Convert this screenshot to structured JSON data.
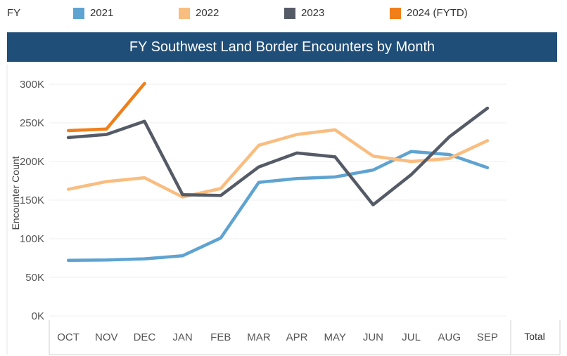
{
  "legend": {
    "title": "FY",
    "items": [
      {
        "label": "2021",
        "color": "#5ea3d1"
      },
      {
        "label": "2022",
        "color": "#f9bd80"
      },
      {
        "label": "2023",
        "color": "#555b66"
      },
      {
        "label": "2024 (FYTD)",
        "color": "#f07f1a"
      }
    ]
  },
  "chart_data": {
    "type": "line",
    "title": "FY Southwest Land Border Encounters by Month",
    "xlabel": "",
    "ylabel": "Encounter Count",
    "categories": [
      "OCT",
      "NOV",
      "DEC",
      "JAN",
      "FEB",
      "MAR",
      "APR",
      "MAY",
      "JUN",
      "JUL",
      "AUG",
      "SEP"
    ],
    "y_ticks": [
      "0K",
      "50K",
      "100K",
      "150K",
      "200K",
      "250K",
      "300K"
    ],
    "ylim": [
      0,
      320000
    ],
    "total_label": "Total",
    "series": [
      {
        "name": "2021",
        "color": "#5ea3d1",
        "values": [
          72000,
          72500,
          74000,
          78000,
          101000,
          173000,
          178000,
          180000,
          189000,
          213000,
          209000,
          192000
        ]
      },
      {
        "name": "2022",
        "color": "#f9bd80",
        "values": [
          164000,
          174000,
          179000,
          154000,
          165000,
          221000,
          235000,
          241000,
          207000,
          200000,
          204000,
          227000
        ]
      },
      {
        "name": "2023",
        "color": "#555b66",
        "values": [
          231000,
          235000,
          252000,
          157000,
          156000,
          193000,
          211000,
          206000,
          144000,
          183000,
          232000,
          269000
        ]
      },
      {
        "name": "2024 (FYTD)",
        "color": "#f07f1a",
        "values": [
          240000,
          242000,
          301000,
          null,
          null,
          null,
          null,
          null,
          null,
          null,
          null,
          null
        ]
      }
    ]
  }
}
